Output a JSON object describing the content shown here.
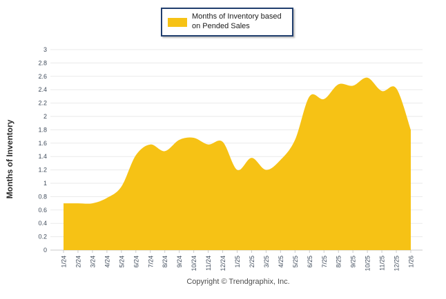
{
  "legend": {
    "label": "Months of Inventory based on Pended Sales"
  },
  "y_axis": {
    "title": "Months of Inventory",
    "tick_labels": [
      "3",
      "2.8",
      "2.6",
      "2.4",
      "2.2",
      "2",
      "1.8",
      "1.6",
      "1.4",
      "1.2",
      "1",
      "0.8",
      "0.6",
      "0.4",
      "0.2",
      "0"
    ]
  },
  "footer": {
    "copyright": "Copyright © Trendgraphix, Inc."
  },
  "colors": {
    "area": "#F6C215",
    "legend_border": "#1F3D6D",
    "grid": "#EAEAEA",
    "axis": "#C8C8C8",
    "tick_label": "#3E4A5A"
  },
  "chart_data": {
    "type": "area",
    "title": "",
    "xlabel": "",
    "ylabel": "Months of Inventory",
    "categories": [
      "1/24",
      "2/24",
      "3/24",
      "4/24",
      "5/24",
      "6/24",
      "7/24",
      "8/24",
      "9/24",
      "10/24",
      "11/24",
      "12/24",
      "1/25",
      "2/25",
      "3/25",
      "4/25",
      "5/25",
      "6/25",
      "7/25",
      "8/25",
      "9/25",
      "10/25",
      "11/25",
      "12/25",
      "1/26"
    ],
    "series": [
      {
        "name": "Months of Inventory based on Pended Sales",
        "values": [
          0.7,
          0.7,
          0.7,
          0.78,
          0.95,
          1.42,
          1.58,
          1.48,
          1.65,
          1.68,
          1.58,
          1.62,
          1.2,
          1.38,
          1.2,
          1.35,
          1.65,
          2.3,
          2.26,
          2.48,
          2.46,
          2.58,
          2.38,
          2.42,
          1.8
        ]
      }
    ],
    "ylim": [
      0,
      3
    ],
    "y_tick_step": 0.2,
    "grid": true,
    "smooth": true,
    "legend_position": "top"
  }
}
